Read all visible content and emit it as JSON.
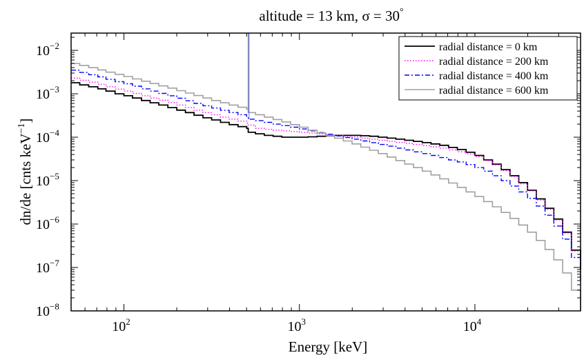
{
  "chart_data": {
    "type": "line",
    "title": "altitude = 13 km, σ = 30°",
    "title_parts": {
      "prefix": "altitude = 13 km, ",
      "sigma": "σ",
      "eq": " = 30",
      "deg": "°"
    },
    "xlabel": "Energy [keV]",
    "ylabel_parts": {
      "main": "dn/de [cnts keV",
      "sup": "−1",
      "close": "]"
    },
    "xscale": "log",
    "yscale": "log",
    "xlim": [
      50,
      40000
    ],
    "ylim": [
      1e-08,
      0.025
    ],
    "grid": false,
    "legend_position": "top-right",
    "x_ticks": [
      {
        "base": "10",
        "exp": "2",
        "value": 100
      },
      {
        "base": "10",
        "exp": "3",
        "value": 1000
      },
      {
        "base": "10",
        "exp": "4",
        "value": 10000
      }
    ],
    "y_ticks": [
      {
        "base": "10",
        "exp": "−8",
        "value": 1e-08
      },
      {
        "base": "10",
        "exp": "−7",
        "value": 1e-07
      },
      {
        "base": "10",
        "exp": "−6",
        "value": 1e-06
      },
      {
        "base": "10",
        "exp": "−5",
        "value": 1e-05
      },
      {
        "base": "10",
        "exp": "−4",
        "value": 0.0001
      },
      {
        "base": "10",
        "exp": "−3",
        "value": 0.001
      },
      {
        "base": "10",
        "exp": "−2",
        "value": 0.01
      }
    ],
    "x": [
      50,
      56,
      63,
      71,
      79,
      89,
      100,
      112,
      126,
      141,
      158,
      178,
      200,
      224,
      251,
      282,
      316,
      355,
      398,
      447,
      501,
      511,
      562,
      631,
      708,
      794,
      891,
      1000,
      1122,
      1259,
      1413,
      1585,
      1778,
      1995,
      2239,
      2512,
      2818,
      3162,
      3548,
      3981,
      4467,
      5012,
      5623,
      6310,
      7079,
      7943,
      8913,
      10000,
      11220,
      12589,
      14125,
      15849,
      17783,
      19953,
      22387,
      25119,
      28184,
      31623,
      35481,
      40000
    ],
    "series": [
      {
        "name": "radial distance = 0 km",
        "color": "#000000",
        "dash": "solid",
        "values": [
          0.0018,
          0.0016,
          0.00145,
          0.0013,
          0.00115,
          0.001,
          0.0009,
          0.0008,
          0.0007,
          0.00062,
          0.00055,
          0.00048,
          0.00042,
          0.00037,
          0.00032,
          0.00028,
          0.00025,
          0.00022,
          0.000195,
          0.000175,
          0.00016,
          0.00013,
          0.00012,
          0.00011,
          0.000105,
          0.0001,
          0.0001,
          0.0001,
          0.000102,
          0.000105,
          0.000108,
          0.00011,
          0.00011,
          0.00011,
          0.000108,
          0.000105,
          0.0001,
          9.5e-05,
          9e-05,
          8.5e-05,
          8e-05,
          7.5e-05,
          7e-05,
          6.5e-05,
          5.8e-05,
          5.2e-05,
          4.5e-05,
          3.8e-05,
          3e-05,
          2.4e-05,
          1.8e-05,
          1.3e-05,
          9e-06,
          6e-06,
          3.8e-06,
          2.3e-06,
          1.3e-06,
          6.5e-07,
          2.5e-07,
          9e-08
        ]
      },
      {
        "name": "radial distance = 200 km",
        "color": "#ff00ff",
        "dash": "dotted",
        "values": [
          0.0023,
          0.00205,
          0.00185,
          0.00165,
          0.00145,
          0.00128,
          0.00115,
          0.00102,
          0.0009,
          0.0008,
          0.00071,
          0.00063,
          0.00055,
          0.00048,
          0.00042,
          0.00037,
          0.00033,
          0.00029,
          0.00026,
          0.000235,
          0.00021,
          0.00019,
          0.00016,
          0.000152,
          0.000145,
          0.00014,
          0.000135,
          0.00013,
          0.000125,
          0.00012,
          0.000115,
          0.00011,
          0.000105,
          0.0001,
          9.5e-05,
          9e-05,
          8.5e-05,
          8e-05,
          7.6e-05,
          7.2e-05,
          6.8e-05,
          6.4e-05,
          6e-05,
          5.6e-05,
          5.1e-05,
          4.6e-05,
          4.1e-05,
          3.6e-05,
          2.9e-05,
          2.3e-05,
          1.7e-05,
          1.25e-05,
          8.5e-06,
          5.8e-06,
          3.6e-06,
          2.2e-06,
          1.25e-06,
          6.2e-07,
          2.4e-07,
          8.5e-08
        ]
      },
      {
        "name": "radial distance = 400 km",
        "color": "#0000ff",
        "dash": "dashdot",
        "values": [
          0.0035,
          0.0031,
          0.00275,
          0.00245,
          0.00215,
          0.0019,
          0.0017,
          0.0015,
          0.0013,
          0.00115,
          0.00102,
          0.0009,
          0.00079,
          0.00069,
          0.0006,
          0.00053,
          0.00047,
          0.000415,
          0.00037,
          0.00033,
          0.0003,
          0.00026,
          0.00024,
          0.00022,
          0.0002,
          0.000185,
          0.00017,
          0.000155,
          0.00014,
          0.000128,
          0.000117,
          0.000107,
          9.8e-05,
          9e-05,
          8.2e-05,
          7.5e-05,
          6.8e-05,
          6.2e-05,
          5.6e-05,
          5.1e-05,
          4.6e-05,
          4.2e-05,
          3.8e-05,
          3.4e-05,
          3e-05,
          2.7e-05,
          2.35e-05,
          2e-05,
          1.65e-05,
          1.3e-05,
          1e-05,
          7.5e-06,
          5.5e-06,
          3.9e-06,
          2.6e-06,
          1.6e-06,
          9e-07,
          4.5e-07,
          1.7e-07,
          5e-08
        ]
      },
      {
        "name": "radial distance = 600 km",
        "color": "#a0a0a0",
        "dash": "solid",
        "values": [
          0.005,
          0.0045,
          0.004,
          0.00355,
          0.00315,
          0.0028,
          0.0025,
          0.0022,
          0.00195,
          0.00172,
          0.00152,
          0.00135,
          0.00118,
          0.00104,
          0.00091,
          0.0008,
          0.0007,
          0.00062,
          0.00055,
          0.00049,
          0.00044,
          0.00037,
          0.00033,
          0.00029,
          0.000255,
          0.000225,
          0.000195,
          0.00017,
          0.000145,
          0.000125,
          0.00011,
          9.5e-05,
          8.2e-05,
          7e-05,
          5.9e-05,
          5e-05,
          4.2e-05,
          3.5e-05,
          2.9e-05,
          2.4e-05,
          2e-05,
          1.65e-05,
          1.35e-05,
          1.1e-05,
          8.8e-06,
          7e-06,
          5.5e-06,
          4.3e-06,
          3.3e-06,
          2.5e-06,
          1.85e-06,
          1.35e-06,
          9.5e-07,
          6.5e-07,
          4.2e-07,
          2.6e-07,
          1.5e-07,
          7.5e-08,
          3e-08,
          1e-08
        ]
      }
    ],
    "annotation_line": {
      "x": 511,
      "y_top": 0.025
    }
  }
}
